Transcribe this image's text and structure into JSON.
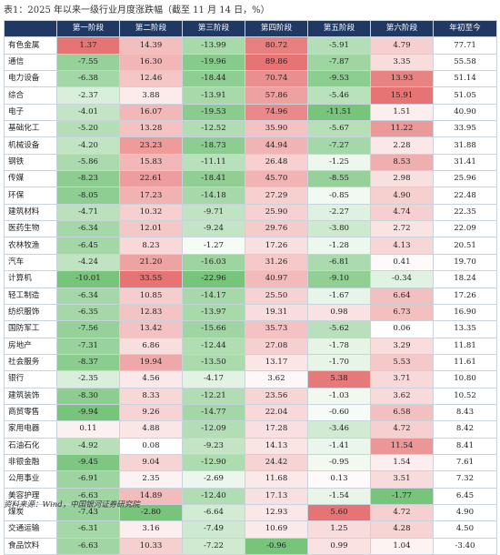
{
  "title": "表1：2025 年以来一级行业月度涨跌幅（截至 11 月 14 日，%）",
  "columns": [
    "",
    "第一阶段",
    "第二阶段",
    "第三阶段",
    "第四阶段",
    "第五阶段",
    "第六阶段",
    "年初至今"
  ],
  "rows": [
    {
      "name": "有色金属",
      "values": [
        "1.37",
        "14.39",
        "-13.99",
        "80.72",
        "-5.91",
        "4.79",
        "77.71"
      ]
    },
    {
      "name": "通信",
      "values": [
        "-7.55",
        "16.30",
        "-19.96",
        "89.86",
        "-7.87",
        "3.35",
        "55.58"
      ]
    },
    {
      "name": "电力设备",
      "values": [
        "-6.38",
        "12.46",
        "-18.44",
        "70.74",
        "-9.53",
        "13.93",
        "51.14"
      ]
    },
    {
      "name": "综合",
      "values": [
        "-2.37",
        "3.88",
        "-13.91",
        "57.86",
        "-5.46",
        "15.91",
        "51.05"
      ]
    },
    {
      "name": "电子",
      "values": [
        "-4.01",
        "16.07",
        "-19.53",
        "74.96",
        "-11.51",
        "1.51",
        "40.90"
      ]
    },
    {
      "name": "基础化工",
      "values": [
        "-5.20",
        "13.28",
        "-12.52",
        "35.90",
        "-5.67",
        "11.22",
        "33.95"
      ]
    },
    {
      "name": "机械设备",
      "values": [
        "-4.20",
        "23.23",
        "-18.73",
        "44.94",
        "-7.27",
        "2.28",
        "31.88"
      ]
    },
    {
      "name": "钢铁",
      "values": [
        "-5.86",
        "15.83",
        "-11.11",
        "26.48",
        "-1.25",
        "8.53",
        "31.41"
      ]
    },
    {
      "name": "传媒",
      "values": [
        "-8.23",
        "22.61",
        "-18.41",
        "45.70",
        "-8.55",
        "2.98",
        "25.96"
      ]
    },
    {
      "name": "环保",
      "values": [
        "-8.05",
        "17.23",
        "-14.18",
        "27.29",
        "-0.85",
        "4.90",
        "22.48"
      ]
    },
    {
      "name": "建筑材料",
      "values": [
        "-4.71",
        "10.32",
        "-9.71",
        "25.90",
        "-2.27",
        "4.74",
        "22.35"
      ]
    },
    {
      "name": "医药生物",
      "values": [
        "-6.34",
        "12.01",
        "-9.24",
        "29.76",
        "-3.80",
        "2.72",
        "22.09"
      ]
    },
    {
      "name": "农林牧渔",
      "values": [
        "-6.45",
        "8.23",
        "-1.27",
        "17.26",
        "-1.28",
        "4.13",
        "20.51"
      ]
    },
    {
      "name": "汽车",
      "values": [
        "-4.24",
        "21.20",
        "-16.03",
        "31.26",
        "-6.81",
        "0.41",
        "19.70"
      ]
    },
    {
      "name": "计算机",
      "values": [
        "-10.01",
        "33.55",
        "-22.96",
        "40.97",
        "-9.10",
        "-0.34",
        "18.24"
      ]
    },
    {
      "name": "轻工制造",
      "values": [
        "-6.34",
        "10.85",
        "-14.17",
        "25.50",
        "-1.67",
        "6.64",
        "17.26"
      ]
    },
    {
      "name": "纺织服饰",
      "values": [
        "-6.35",
        "12.83",
        "-13.97",
        "19.31",
        "0.98",
        "6.73",
        "16.90"
      ]
    },
    {
      "name": "国防军工",
      "values": [
        "-7.56",
        "13.42",
        "-15.66",
        "35.73",
        "-5.62",
        "0.06",
        "13.35"
      ]
    },
    {
      "name": "房地产",
      "values": [
        "-7.31",
        "6.86",
        "-12.44",
        "27.08",
        "-1.78",
        "3.29",
        "11.81"
      ]
    },
    {
      "name": "社会服务",
      "values": [
        "-8.37",
        "19.94",
        "-13.50",
        "13.17",
        "-1.70",
        "5.53",
        "11.61"
      ]
    },
    {
      "name": "银行",
      "values": [
        "-2.35",
        "4.56",
        "-4.17",
        "3.62",
        "5.38",
        "3.71",
        "10.80"
      ]
    },
    {
      "name": "建筑装饰",
      "values": [
        "-8.30",
        "8.33",
        "-12.21",
        "23.56",
        "-1.03",
        "3.62",
        "10.52"
      ]
    },
    {
      "name": "商贸零售",
      "values": [
        "-9.94",
        "9.26",
        "-14.77",
        "22.04",
        "-0.60",
        "6.58",
        "8.43"
      ]
    },
    {
      "name": "家用电器",
      "values": [
        "0.11",
        "4.88",
        "-12.09",
        "17.28",
        "-3.46",
        "4.72",
        "8.42"
      ]
    },
    {
      "name": "石油石化",
      "values": [
        "-4.92",
        "0.08",
        "-9.23",
        "14.13",
        "-1.41",
        "11.54",
        "8.41"
      ]
    },
    {
      "name": "非银金融",
      "values": [
        "-9.45",
        "9.04",
        "-12.90",
        "24.42",
        "-0.95",
        "1.54",
        "7.61"
      ]
    },
    {
      "name": "公用事业",
      "values": [
        "-6.91",
        "2.35",
        "-2.69",
        "11.68",
        "0.13",
        "3.51",
        "7.32"
      ]
    },
    {
      "name": "美容护理",
      "values": [
        "-6.63",
        "14.89",
        "-12.40",
        "17.13",
        "-1.54",
        "-1.77",
        "6.45"
      ]
    },
    {
      "name": "煤炭",
      "values": [
        "-7.43",
        "-2.80",
        "-6.64",
        "12.93",
        "5.60",
        "4.72",
        "4.90"
      ]
    },
    {
      "name": "交通运输",
      "values": [
        "-6.31",
        "3.16",
        "-7.49",
        "10.69",
        "1.25",
        "4.28",
        "4.50"
      ]
    },
    {
      "name": "食品饮料",
      "values": [
        "-6.63",
        "10.33",
        "-7.22",
        "-0.96",
        "0.99",
        "1.04",
        "-3.40"
      ]
    }
  ],
  "source": "资料来源：Wind，中国银河证券研究院",
  "colors": {
    "header_bg": "#1f3864",
    "positive_max": "#e15b5b",
    "negative_max": "#5fb964",
    "grid": "#c9d3dd"
  }
}
